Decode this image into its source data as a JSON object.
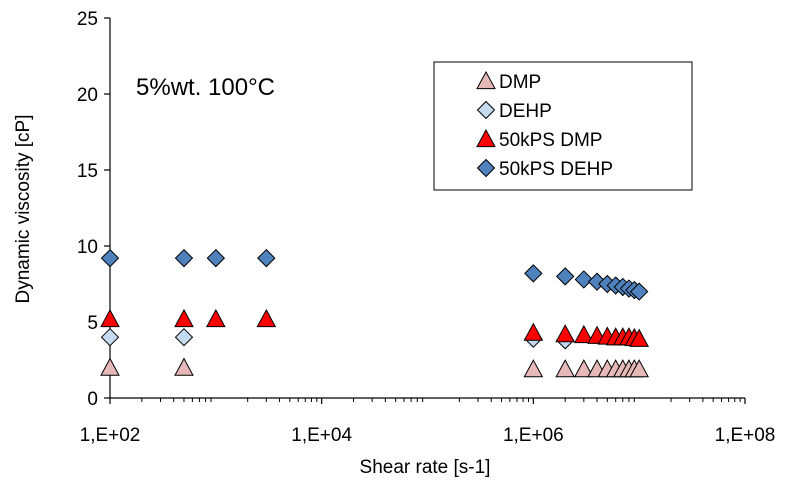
{
  "chart_data": {
    "type": "scatter",
    "xscale": "log",
    "xlabel": "Shear rate [s-1]",
    "ylabel": "Dynamic viscosity [cP]",
    "xlim": [
      100,
      100000000
    ],
    "ylim": [
      0,
      25
    ],
    "xticks": [
      {
        "value": 100,
        "label": "1,E+02"
      },
      {
        "value": 10000,
        "label": "1,E+04"
      },
      {
        "value": 1000000,
        "label": "1,E+06"
      },
      {
        "value": 100000000,
        "label": "1,E+08"
      }
    ],
    "yticks": [
      {
        "value": 0,
        "label": "0"
      },
      {
        "value": 5,
        "label": "5"
      },
      {
        "value": 10,
        "label": "10"
      },
      {
        "value": 15,
        "label": "15"
      },
      {
        "value": 20,
        "label": "20"
      },
      {
        "value": 25,
        "label": "25"
      }
    ],
    "annotation": "5%wt. 100°C",
    "legend_position": "top-right",
    "grid": false,
    "series": [
      {
        "name": "DMP",
        "marker": "triangle",
        "color": "#e6b8b7",
        "points": [
          [
            100,
            2.0
          ],
          [
            500,
            2.0
          ],
          [
            1000000,
            1.9
          ],
          [
            2000000,
            1.9
          ],
          [
            3000000,
            1.9
          ],
          [
            4000000,
            1.9
          ],
          [
            5000000,
            1.9
          ],
          [
            6000000,
            1.9
          ],
          [
            7000000,
            1.9
          ],
          [
            8000000,
            1.9
          ],
          [
            9000000,
            1.9
          ],
          [
            10000000,
            1.9
          ]
        ]
      },
      {
        "name": "DEHP",
        "marker": "diamond",
        "color": "#c5d9f1",
        "points": [
          [
            100,
            4.0
          ],
          [
            500,
            4.0
          ],
          [
            1000000,
            3.9
          ],
          [
            2000000,
            3.8
          ]
        ]
      },
      {
        "name": "50kPS DMP",
        "marker": "triangle",
        "color": "#ff0000",
        "points": [
          [
            100,
            5.2
          ],
          [
            500,
            5.2
          ],
          [
            1000,
            5.2
          ],
          [
            3000,
            5.2
          ],
          [
            1000000,
            4.3
          ],
          [
            2000000,
            4.2
          ],
          [
            3000000,
            4.15
          ],
          [
            4000000,
            4.1
          ],
          [
            5000000,
            4.05
          ],
          [
            6000000,
            4.0
          ],
          [
            7000000,
            4.0
          ],
          [
            8000000,
            4.0
          ],
          [
            9000000,
            3.95
          ],
          [
            10000000,
            3.9
          ]
        ]
      },
      {
        "name": "50kPS DEHP",
        "marker": "diamond",
        "color": "#4f81bd",
        "points": [
          [
            100,
            9.2
          ],
          [
            500,
            9.2
          ],
          [
            1000,
            9.2
          ],
          [
            3000,
            9.2
          ],
          [
            1000000,
            8.2
          ],
          [
            2000000,
            8.0
          ],
          [
            3000000,
            7.8
          ],
          [
            4000000,
            7.65
          ],
          [
            5000000,
            7.5
          ],
          [
            6000000,
            7.4
          ],
          [
            7000000,
            7.3
          ],
          [
            8000000,
            7.2
          ],
          [
            9000000,
            7.1
          ],
          [
            10000000,
            7.0
          ]
        ]
      }
    ]
  }
}
